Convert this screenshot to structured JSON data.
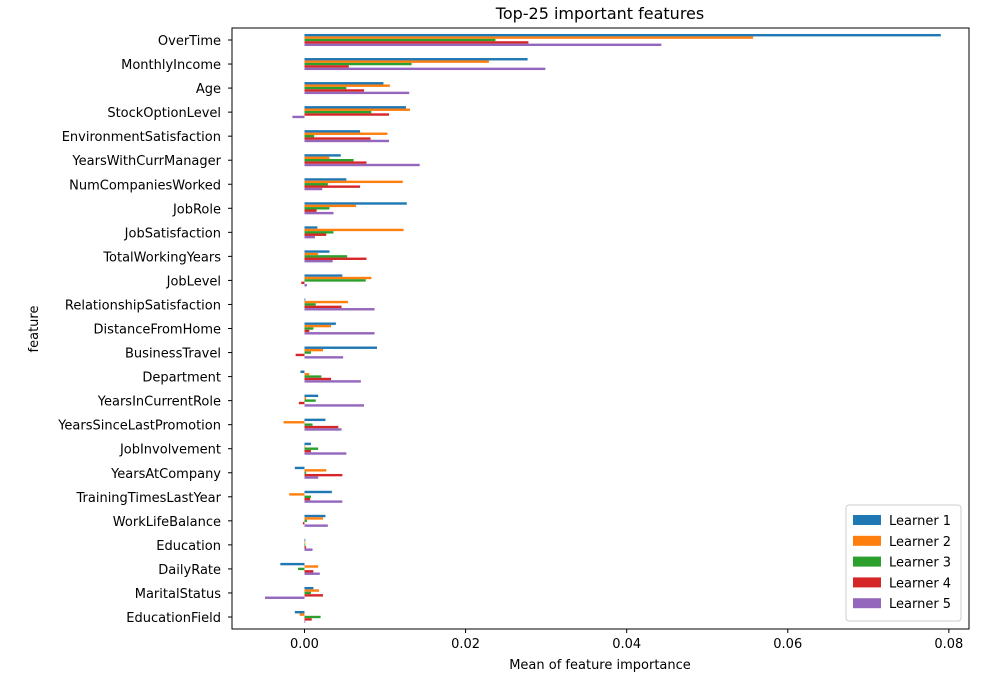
{
  "chart_data": {
    "type": "bar",
    "orientation": "horizontal",
    "title": "Top-25 important features",
    "xlabel": "Mean of feature importance",
    "ylabel": "feature",
    "xlim": [
      -0.009,
      0.0825
    ],
    "xticks": [
      0.0,
      0.02,
      0.04,
      0.06,
      0.08
    ],
    "xtick_labels": [
      "0.00",
      "0.02",
      "0.04",
      "0.06",
      "0.08"
    ],
    "grid": false,
    "legend_position": "bottom-right",
    "categories": [
      "OverTime",
      "MonthlyIncome",
      "Age",
      "StockOptionLevel",
      "EnvironmentSatisfaction",
      "YearsWithCurrManager",
      "NumCompaniesWorked",
      "JobRole",
      "JobSatisfaction",
      "TotalWorkingYears",
      "JobLevel",
      "RelationshipSatisfaction",
      "DistanceFromHome",
      "BusinessTravel",
      "Department",
      "YearsInCurrentRole",
      "YearsSinceLastPromotion",
      "JobInvolvement",
      "YearsAtCompany",
      "TrainingTimesLastYear",
      "WorkLifeBalance",
      "Education",
      "DailyRate",
      "MaritalStatus",
      "EducationField"
    ],
    "series": [
      {
        "name": "Learner 1",
        "color": "#1f77b4",
        "values": [
          0.079,
          0.0277,
          0.0098,
          0.0126,
          0.0069,
          0.0045,
          0.0052,
          0.0127,
          0.0016,
          0.0031,
          0.0047,
          0.0001,
          0.0039,
          0.009,
          -0.0005,
          0.0017,
          0.0026,
          0.0008,
          -0.0012,
          0.0034,
          0.0026,
          0.0001,
          -0.003,
          0.0011,
          -0.0012
        ]
      },
      {
        "name": "Learner 2",
        "color": "#ff7f0e",
        "values": [
          0.0557,
          0.0229,
          0.0106,
          0.0131,
          0.0103,
          0.0031,
          0.0122,
          0.0064,
          0.0123,
          0.0017,
          0.0083,
          0.0054,
          0.0033,
          0.0023,
          0.0006,
          0.0002,
          -0.0026,
          0.0001,
          0.0027,
          -0.0019,
          0.0023,
          0.0001,
          0.0017,
          0.0018,
          -0.0006
        ]
      },
      {
        "name": "Learner 3",
        "color": "#2ca02c",
        "values": [
          0.0237,
          0.0133,
          0.0052,
          0.0083,
          0.0012,
          0.0061,
          0.0029,
          0.0031,
          0.0036,
          0.0053,
          0.0076,
          0.0014,
          0.0011,
          0.0008,
          0.0021,
          0.0014,
          0.001,
          0.0017,
          0.0002,
          0.0008,
          0.0003,
          0.0001,
          -0.0008,
          0.0008,
          0.002
        ]
      },
      {
        "name": "Learner 4",
        "color": "#d62728",
        "values": [
          0.0278,
          0.0055,
          0.0074,
          0.0105,
          0.0082,
          0.0077,
          0.0069,
          0.0015,
          0.0027,
          0.0077,
          -0.0004,
          0.0046,
          0.0006,
          -0.0011,
          0.0033,
          -0.0007,
          0.0042,
          0.0008,
          0.0047,
          0.0007,
          -0.0002,
          0.0002,
          0.0011,
          0.0023,
          0.0009
        ]
      },
      {
        "name": "Learner 5",
        "color": "#9467bd",
        "values": [
          0.0443,
          0.0299,
          0.013,
          -0.0015,
          0.0105,
          0.0143,
          0.0022,
          0.0036,
          0.0013,
          0.0035,
          0.0003,
          0.0087,
          0.0087,
          0.0048,
          0.007,
          0.0074,
          0.0046,
          0.0052,
          0.0017,
          0.0047,
          0.0029,
          0.001,
          0.0019,
          -0.0049,
          0.0001
        ]
      }
    ]
  }
}
